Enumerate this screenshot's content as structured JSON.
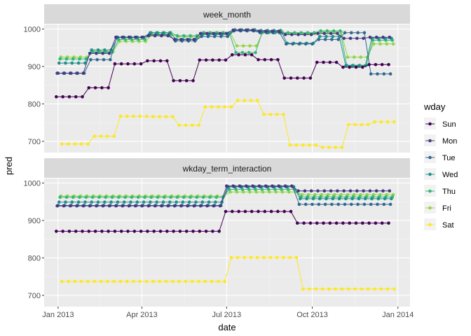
{
  "chart_data": {
    "type": "line",
    "xlabel": "date",
    "ylabel": "pred",
    "x_ticks": [
      "Jan 2013",
      "Apr 2013",
      "Jul 2013",
      "Oct 2013",
      "Jan 2014"
    ],
    "y_ticks": [
      700,
      800,
      900,
      1000
    ],
    "ylim": [
      670,
      1012
    ],
    "xlim": [
      "2012-12-17",
      "2014-01-14"
    ],
    "legend": {
      "title": "wday",
      "position": "right",
      "entries": [
        "Sun",
        "Mon",
        "Tue",
        "Wed",
        "Thu",
        "Fri",
        "Sat"
      ]
    },
    "colors": {
      "Sun": "#440154",
      "Mon": "#443A83",
      "Tue": "#31688E",
      "Wed": "#21908C",
      "Thu": "#35B779",
      "Fri": "#8FD744",
      "Sat": "#FDE725"
    },
    "panels": [
      {
        "strip": "week_month",
        "segments": [
          {
            "start": "2013-01-01",
            "count": 5,
            "values": {
              "Sun": 819,
              "Mon": 882,
              "Tue": 882,
              "Wed": 909,
              "Thu": 920,
              "Fri": 925,
              "Sat": 693
            }
          },
          {
            "start": "2013-02-05",
            "count": 4,
            "values": {
              "Sun": 843,
              "Mon": 935,
              "Tue": 918,
              "Wed": 944,
              "Thu": 938,
              "Fri": 940,
              "Sat": 714
            }
          },
          {
            "start": "2013-03-05",
            "count": 5,
            "values": {
              "Sun": 907,
              "Mon": 978,
              "Tue": 978,
              "Wed": 978,
              "Thu": 972,
              "Fri": 967,
              "Sat": 767
            }
          },
          {
            "start": "2013-04-09",
            "count": 4,
            "values": {
              "Sun": 915,
              "Mon": 982,
              "Tue": 985,
              "Wed": 990,
              "Thu": 990,
              "Fri": 985,
              "Sat": 766
            }
          },
          {
            "start": "2013-05-07",
            "count": 4,
            "values": {
              "Sun": 862,
              "Mon": 972,
              "Tue": 968,
              "Wed": 972,
              "Thu": 982,
              "Fri": 980,
              "Sat": 743
            }
          },
          {
            "start": "2013-06-04",
            "count": 5,
            "values": {
              "Sun": 917,
              "Mon": 988,
              "Tue": 980,
              "Wed": 985,
              "Thu": 990,
              "Fri": 990,
              "Sat": 792
            }
          },
          {
            "start": "2013-07-09",
            "count": 4,
            "values": {
              "Sun": 931,
              "Mon": 997,
              "Tue": 995,
              "Wed": 998,
              "Thu": 937,
              "Fri": 955,
              "Sat": 809
            }
          },
          {
            "start": "2013-08-06",
            "count": 4,
            "values": {
              "Sun": 918,
              "Mon": 994,
              "Tue": 990,
              "Wed": 996,
              "Thu": 990,
              "Fri": 992,
              "Sat": 772
            }
          },
          {
            "start": "2013-09-03",
            "count": 5,
            "values": {
              "Sun": 869,
              "Mon": 985,
              "Tue": 960,
              "Wed": 962,
              "Thu": 990,
              "Fri": 988,
              "Sat": 690
            }
          },
          {
            "start": "2013-10-08",
            "count": 4,
            "values": {
              "Sun": 911,
              "Mon": 988,
              "Tue": 972,
              "Wed": 980,
              "Thu": 995,
              "Fri": 992,
              "Sat": 684
            }
          },
          {
            "start": "2013-11-05",
            "count": 4,
            "values": {
              "Sun": 898,
              "Mon": 975,
              "Tue": 990,
              "Wed": 902,
              "Thu": 903,
              "Fri": 925,
              "Sat": 745
            }
          },
          {
            "start": "2013-12-03",
            "count": 4,
            "values": {
              "Sun": 905,
              "Mon": 978,
              "Tue": 880,
              "Wed": 975,
              "Thu": 970,
              "Fri": 960,
              "Sat": 752
            }
          }
        ]
      },
      {
        "strip": "wkday_term_interaction",
        "segments": [
          {
            "start": "2013-01-01",
            "count": 26,
            "values": {
              "Sun": 871,
              "Mon": 939,
              "Tue": 940,
              "Wed": 949,
              "Thu": 962,
              "Fri": 965,
              "Sat": 737
            }
          },
          {
            "start": "2013-07-02",
            "count": 11,
            "values": {
              "Sun": 924,
              "Mon": 992,
              "Tue": 990,
              "Wed": 990,
              "Thu": 983,
              "Fri": 976,
              "Sat": 801
            }
          },
          {
            "start": "2013-09-17",
            "count": 15,
            "values": {
              "Sun": 893,
              "Mon": 979,
              "Tue": 943,
              "Wed": 958,
              "Thu": 963,
              "Fri": 969,
              "Sat": 717
            }
          }
        ]
      }
    ]
  }
}
